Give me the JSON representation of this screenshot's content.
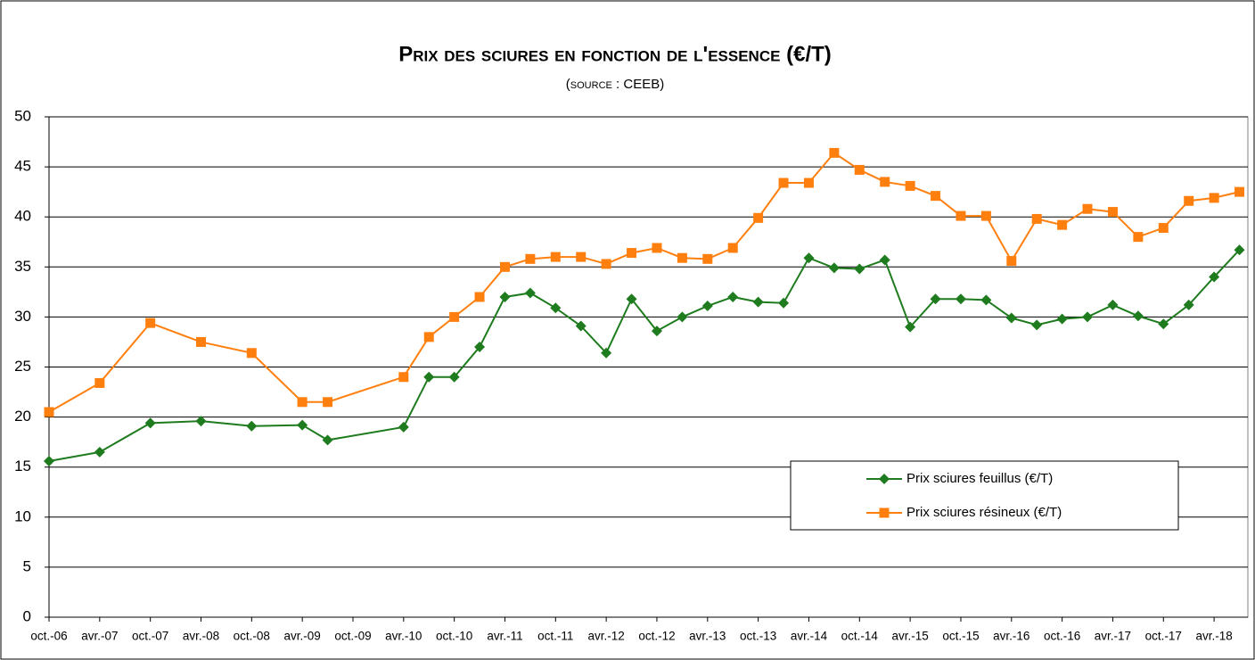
{
  "chart_data": {
    "type": "line",
    "title": "Prix des sciures en fonction de l'essence (€/T)",
    "subtitle": "(source : CEEB)",
    "xlim": [
      0,
      142
    ],
    "xticks": [
      {
        "value": 0,
        "label": "oct.-06"
      },
      {
        "value": 6,
        "label": "avr.-07"
      },
      {
        "value": 12,
        "label": "oct.-07"
      },
      {
        "value": 18,
        "label": "avr.-08"
      },
      {
        "value": 24,
        "label": "oct.-08"
      },
      {
        "value": 30,
        "label": "avr.-09"
      },
      {
        "value": 36,
        "label": "oct.-09"
      },
      {
        "value": 42,
        "label": "avr.-10"
      },
      {
        "value": 48,
        "label": "oct.-10"
      },
      {
        "value": 54,
        "label": "avr.-11"
      },
      {
        "value": 60,
        "label": "oct.-11"
      },
      {
        "value": 66,
        "label": "avr.-12"
      },
      {
        "value": 72,
        "label": "oct.-12"
      },
      {
        "value": 78,
        "label": "avr.-13"
      },
      {
        "value": 84,
        "label": "oct.-13"
      },
      {
        "value": 90,
        "label": "avr.-14"
      },
      {
        "value": 96,
        "label": "oct.-14"
      },
      {
        "value": 102,
        "label": "avr.-15"
      },
      {
        "value": 108,
        "label": "oct.-15"
      },
      {
        "value": 114,
        "label": "avr.-16"
      },
      {
        "value": 120,
        "label": "oct.-16"
      },
      {
        "value": 126,
        "label": "avr.-17"
      },
      {
        "value": 132,
        "label": "oct.-17"
      },
      {
        "value": 138,
        "label": "avr.-18"
      }
    ],
    "ylim": [
      0,
      50
    ],
    "yticks": [
      0,
      5,
      10,
      15,
      20,
      25,
      30,
      35,
      40,
      45,
      50
    ],
    "grid": true,
    "x": [
      0,
      6,
      12,
      18,
      24,
      30,
      33,
      42,
      45,
      48,
      51,
      54,
      57,
      60,
      63,
      66,
      69,
      72,
      75,
      78,
      81,
      84,
      87,
      90,
      93,
      96,
      99,
      102,
      105,
      108,
      111,
      114,
      117,
      120,
      123,
      126,
      129,
      132,
      135,
      138,
      141
    ],
    "series": [
      {
        "name": "Prix sciures feuillus (€/T)",
        "color": "#1e7b1e",
        "marker": "diamond",
        "values": [
          15.6,
          16.5,
          19.4,
          19.6,
          19.1,
          19.2,
          17.7,
          19.0,
          24.0,
          24.0,
          27.0,
          32.0,
          32.4,
          30.9,
          29.1,
          26.4,
          31.8,
          28.6,
          30.0,
          31.1,
          32.0,
          31.5,
          31.4,
          35.9,
          34.9,
          34.8,
          35.7,
          29.0,
          31.8,
          31.8,
          31.7,
          29.9,
          29.2,
          29.8,
          30.0,
          31.2,
          30.1,
          29.3,
          31.2,
          34.0,
          36.7
        ]
      },
      {
        "name": "Prix sciures résineux (€/T)",
        "color": "#ff7f0e",
        "marker": "square",
        "values": [
          20.5,
          23.4,
          29.4,
          27.5,
          26.4,
          21.5,
          21.5,
          24.0,
          28.0,
          30.0,
          32.0,
          35.0,
          35.8,
          36.0,
          36.0,
          35.3,
          36.4,
          36.9,
          35.9,
          35.8,
          36.9,
          39.9,
          43.4,
          43.4,
          46.4,
          44.7,
          43.5,
          43.1,
          42.1,
          40.1,
          40.1,
          35.6,
          39.8,
          39.2,
          40.8,
          40.5,
          38.0,
          38.9,
          41.6,
          41.9,
          42.5
        ]
      }
    ]
  }
}
